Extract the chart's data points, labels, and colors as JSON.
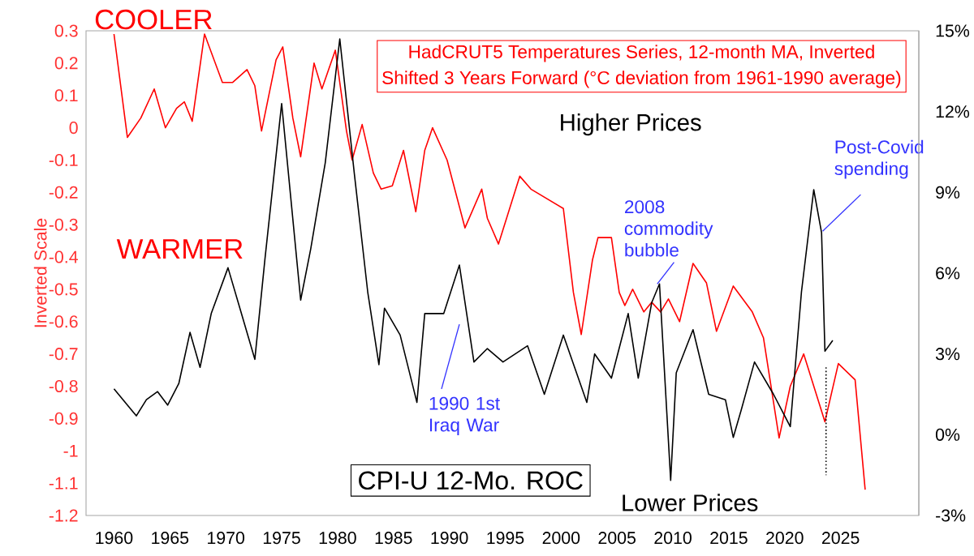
{
  "chart_data": {
    "type": "line",
    "title": "HadCRUT5 Temperatures Series, 12-month MA, Inverted",
    "subtitle": "Shifted 3 Years Forward (°C deviation from 1961-1990 average)",
    "ylabel": "Inverted Scale",
    "xlim": [
      1957.5,
      2032
    ],
    "xticks": [
      1960,
      1965,
      1970,
      1975,
      1980,
      1985,
      1990,
      1995,
      2000,
      2005,
      2010,
      2015,
      2020,
      2025
    ],
    "ylim": [
      -1.2,
      0.3
    ],
    "yticks": [
      -1.2,
      -1.1,
      -1,
      -0.9,
      -0.8,
      -0.7,
      -0.6,
      -0.5,
      -0.4,
      -0.3,
      -0.2,
      -0.1,
      0,
      0.1,
      0.2,
      0.3
    ],
    "y2lim": [
      -3,
      15
    ],
    "y2ticks": [
      {
        "value": -3,
        "label": "-3%"
      },
      {
        "value": 0,
        "label": "0%"
      },
      {
        "value": 3,
        "label": "3%"
      },
      {
        "value": 6,
        "label": "6%"
      },
      {
        "value": 9,
        "label": "9%"
      },
      {
        "value": 12,
        "label": "12%"
      },
      {
        "value": 15,
        "label": "15%"
      }
    ],
    "annotations": [
      "COOLER",
      "WARMER",
      "Higher Prices",
      "Lower Prices",
      "2008 commodity bubble",
      "1990 1st Iraq War",
      {
        "text": "Post-Covid spending",
        "x": 2023.4,
        "y": -0.32
      }
    ],
    "series": [
      {
        "color": "#ff0000",
        "x": [
          1960,
          1961.2,
          1962.4,
          1963.6,
          1964.6,
          1965.6,
          1966.3,
          1967,
          1968.1,
          1969.7,
          1970.6,
          1971.9,
          1972.6,
          1973.2,
          1974.5,
          1975.1,
          1976,
          1976.7,
          1977.9,
          1978.6,
          1979.8,
          1980.8,
          1981.3,
          1982.2,
          1983.2,
          1983.9,
          1984.9,
          1985.9,
          1987,
          1987.8,
          1988.5,
          1989.8,
          1991.4,
          1992.9,
          1993.4,
          1994.4,
          1996.3,
          1997.3,
          2000.2,
          2001.1,
          2001.8,
          2002.8,
          2003.3,
          2004.5,
          2005.2,
          2005.7,
          2006.4,
          2007.4,
          2008.1,
          2008.9,
          2009.6,
          2010.6,
          2011.8,
          2013,
          2013.9,
          2015.4,
          2017.1,
          2018.1,
          2019.5,
          2020.5,
          2021.7,
          2023.6,
          2024.8,
          2026.3,
          2027.2
        ],
        "values": [
          0.29,
          -0.03,
          0.03,
          0.12,
          0.0,
          0.06,
          0.08,
          0.02,
          0.29,
          0.14,
          0.14,
          0.18,
          0.13,
          -0.01,
          0.21,
          0.25,
          0.03,
          -0.09,
          0.2,
          0.12,
          0.24,
          -0.01,
          -0.1,
          0.01,
          -0.14,
          -0.19,
          -0.18,
          -0.07,
          -0.26,
          -0.07,
          0.0,
          -0.1,
          -0.31,
          -0.19,
          -0.28,
          -0.36,
          -0.15,
          -0.19,
          -0.25,
          -0.51,
          -0.64,
          -0.41,
          -0.34,
          -0.34,
          -0.51,
          -0.55,
          -0.5,
          -0.57,
          -0.54,
          -0.57,
          -0.53,
          -0.6,
          -0.42,
          -0.48,
          -0.63,
          -0.49,
          -0.57,
          -0.65,
          -0.96,
          -0.8,
          -0.7,
          -0.91,
          -0.73,
          -0.78,
          -1.12
        ]
      },
      {
        "axis": "y2",
        "name": "CPI-U 12-Mo. ROC",
        "color": "#000000",
        "x": [
          1960,
          1961,
          1962,
          1962.9,
          1963.9,
          1964.8,
          1965.8,
          1966.8,
          1967.7,
          1968.7,
          1970.2,
          1971.4,
          1972.6,
          1973.5,
          1975,
          1976.7,
          1977.6,
          1978.9,
          1980.2,
          1981.5,
          1982.7,
          1983.7,
          1984.2,
          1985.6,
          1987.1,
          1987.8,
          1989.5,
          1990.9,
          1992.2,
          1993.4,
          1994.8,
          1997,
          1998.5,
          2000.2,
          2002.3,
          2003,
          2004.5,
          2006,
          2006.9,
          2008.1,
          2008.8,
          2009.8,
          2010.3,
          2011.8,
          2013.2,
          2014.7,
          2015.4,
          2016.1,
          2017.3,
          2019,
          2020.5,
          2021.5,
          2022.6,
          2023.3,
          2023.6,
          2024.3
        ],
        "values": [
          1.7,
          1.2,
          0.7,
          1.3,
          1.6,
          1.1,
          1.9,
          3.8,
          2.5,
          4.5,
          6.2,
          4.5,
          2.8,
          6.5,
          12.3,
          5.0,
          6.9,
          10.1,
          14.7,
          9.7,
          5.3,
          2.6,
          4.7,
          3.7,
          1.2,
          4.5,
          4.5,
          6.3,
          2.7,
          3.2,
          2.7,
          3.3,
          1.5,
          3.7,
          1.2,
          3.0,
          2.1,
          4.5,
          2.1,
          4.9,
          5.6,
          -1.7,
          2.3,
          3.9,
          1.5,
          1.3,
          -0.1,
          0.9,
          2.7,
          1.5,
          0.3,
          5.3,
          9.1,
          7.5,
          3.1,
          3.5
        ]
      },
      {
        "axis": "y2",
        "color": "#000000",
        "line_style": "dotted",
        "x": [
          2023.7,
          2023.7
        ],
        "values": [
          2.5,
          -1.5
        ]
      }
    ]
  }
}
